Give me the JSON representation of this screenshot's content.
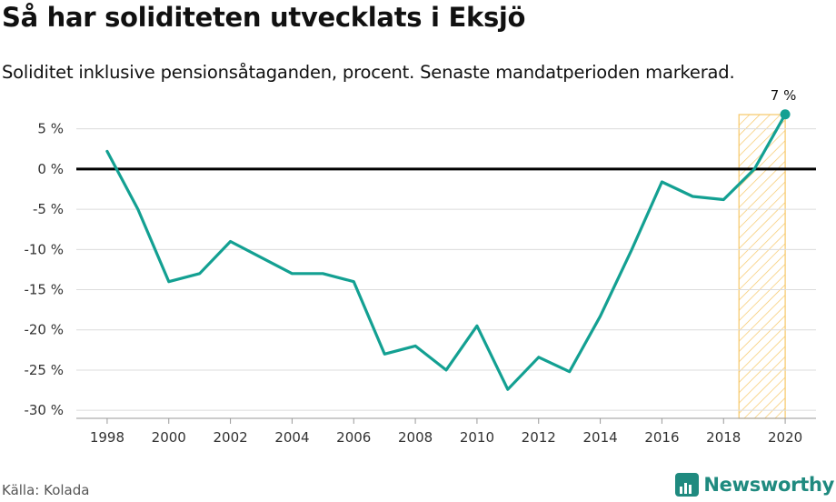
{
  "title": "Så har soliditeten utvecklats i Eksjö",
  "subtitle": "Soliditet inklusive pensionsåtaganden, procent. Senaste mandatperioden markerad.",
  "source": "Källa: Kolada",
  "brand": "Newsworthy",
  "colors": {
    "line": "#13a092",
    "zero_line": "#000000",
    "grid": "#dcdcdc",
    "highlight_stroke": "#f6c767",
    "highlight_fill": "#fcecc4"
  },
  "chart_data": {
    "type": "line",
    "title": "Så har soliditeten utvecklats i Eksjö",
    "subtitle": "Soliditet inklusive pensionsåtaganden, procent. Senaste mandatperioden markerad.",
    "xlabel": "",
    "ylabel": "",
    "x": [
      1998,
      1999,
      2000,
      2001,
      2002,
      2003,
      2004,
      2005,
      2006,
      2007,
      2008,
      2009,
      2010,
      2011,
      2012,
      2013,
      2014,
      2015,
      2016,
      2017,
      2018,
      2019,
      2020
    ],
    "series": [
      {
        "values": [
          2.2,
          -5,
          -14,
          -13,
          -9,
          -11,
          -13,
          -13,
          -14,
          -23,
          -22,
          -25,
          -19.5,
          -27.4,
          -23.4,
          -25.2,
          -18.3,
          -10.2,
          -1.6,
          -3.4,
          -3.8,
          0,
          6.8
        ]
      }
    ],
    "xlim": [
      1997,
      2021
    ],
    "ylim": [
      -31,
      7
    ],
    "yticks": [
      5,
      0,
      -5,
      -10,
      -15,
      -20,
      -25,
      -30
    ],
    "ytick_labels": [
      "5 %",
      "0 %",
      "-5 %",
      "-10 %",
      "-15 %",
      "-20 %",
      "-25 %",
      "-30 %"
    ],
    "xticks": [
      1998,
      2000,
      2002,
      2004,
      2006,
      2008,
      2010,
      2012,
      2014,
      2016,
      2018,
      2020
    ],
    "xtick_labels": [
      "1998",
      "2000",
      "2002",
      "2004",
      "2006",
      "2008",
      "2010",
      "2012",
      "2014",
      "2016",
      "2018",
      "2020"
    ],
    "highlight_range": [
      2018.5,
      2020
    ],
    "end_label": "7 %",
    "grid": true
  }
}
